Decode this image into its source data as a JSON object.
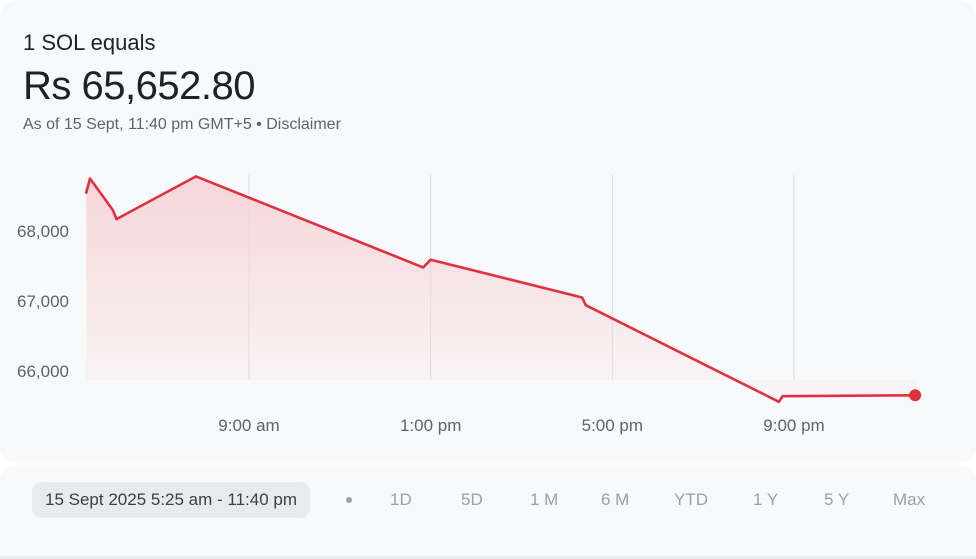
{
  "header": {
    "title": "1 SOL equals",
    "price": "Rs 65,652.80",
    "as_of": "As of 15 Sept, 11:40 pm GMT+5",
    "separator": " • ",
    "disclaimer": "Disclaimer"
  },
  "colors": {
    "line": "#e03140",
    "fill": "#f6d4d8",
    "grid": "#dadce0"
  },
  "chart_data": {
    "type": "area",
    "x_unit": "time (15 Sept 2025)",
    "xlabel": "",
    "ylabel": "",
    "y_ticks": [
      66000,
      67000,
      68000
    ],
    "y_tick_labels": [
      "66,000",
      "67,000",
      "68,000"
    ],
    "x_ticks": [
      "09:00",
      "13:00",
      "17:00",
      "21:00"
    ],
    "x_tick_labels": [
      "9:00 am",
      "1:00 pm",
      "5:00 pm",
      "9:00 pm"
    ],
    "grid_vertical": true,
    "series": [
      {
        "x": [
          "05:25",
          "05:30",
          "06:00",
          "06:05",
          "07:50",
          "12:50",
          "13:00",
          "16:20",
          "16:25",
          "20:40",
          "20:45",
          "23:40"
        ],
        "y": [
          68550,
          68750,
          68300,
          68170,
          68780,
          67480,
          67590,
          67050,
          66940,
          65560,
          65640,
          65652.8
        ]
      }
    ],
    "last_point": {
      "x": "23:40",
      "y": 65652.8
    }
  },
  "range_selector": {
    "current_range": "15 Sept 2025 5:25 am - 11:40 pm",
    "periods": [
      "1D",
      "5D",
      "1 M",
      "6 M",
      "YTD",
      "1 Y",
      "5 Y",
      "Max"
    ]
  }
}
